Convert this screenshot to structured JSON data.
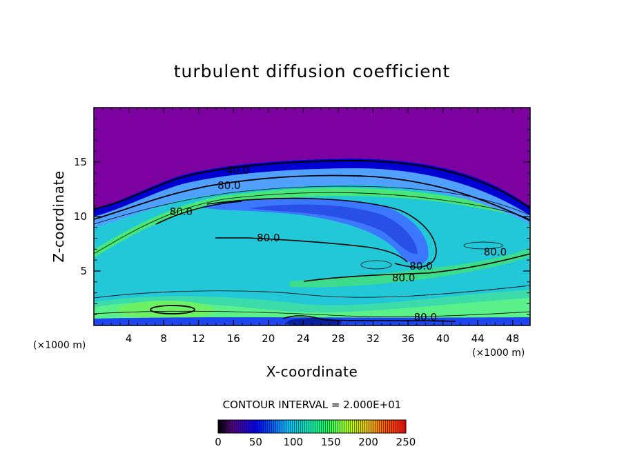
{
  "chart_data": {
    "type": "heatmap",
    "subtype": "filled-contour",
    "title": "turbulent diffusion coefficient",
    "xlabel": "X-coordinate",
    "ylabel": "Z-coordinate",
    "x_unit": "(×1000 m)",
    "z_unit": "(×1000 m)",
    "xlim": [
      0,
      50
    ],
    "ylim": [
      0,
      20
    ],
    "x_ticks": [
      4,
      8,
      12,
      16,
      20,
      24,
      28,
      32,
      36,
      40,
      44,
      48
    ],
    "y_ticks": [
      5,
      10,
      15
    ],
    "contour_interval_text": "CONTOUR INTERVAL = 2.000E+01",
    "contour_labels": [
      {
        "text": "40.0",
        "x": 16.5,
        "z": 14.0
      },
      {
        "text": "80.0",
        "x": 15.5,
        "z": 12.6
      },
      {
        "text": "80.0",
        "x": 10.0,
        "z": 10.2
      },
      {
        "text": "80.0",
        "x": 20.0,
        "z": 7.8
      },
      {
        "text": "80.0",
        "x": 37.5,
        "z": 5.2
      },
      {
        "text": "80.0",
        "x": 35.5,
        "z": 4.1
      },
      {
        "text": "80.0",
        "x": 46.0,
        "z": 6.5
      },
      {
        "text": "80.0",
        "x": 38.0,
        "z": 0.5
      }
    ],
    "colorbar": {
      "range": [
        0,
        250
      ],
      "tick_labels": [
        "0",
        "50",
        "100",
        "150",
        "200",
        "250"
      ],
      "colors": [
        "#000000",
        "#7a00a0",
        "#0000ff",
        "#00c8ff",
        "#00ff80",
        "#e0ff00",
        "#ff8000",
        "#ff0000"
      ]
    },
    "colors": {
      "top_region": "#7d00a0",
      "tropopause_dark": "#0000c8",
      "mid_blue": "#3c78ff",
      "cyan": "#1ec8dc",
      "aqua": "#2ee6c8",
      "green": "#4cf05a",
      "deep_blue": "#1e3cf0"
    }
  }
}
